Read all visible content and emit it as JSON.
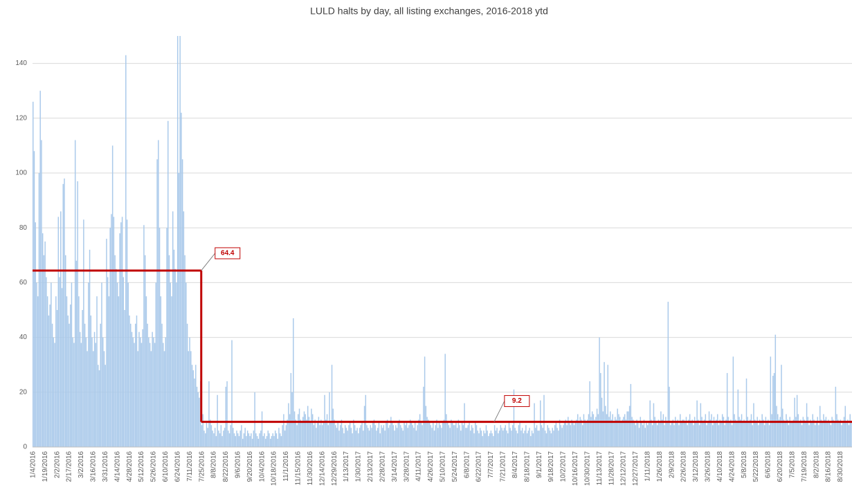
{
  "chart_data": {
    "type": "bar",
    "title": "LULD halts by day, all listing exchanges, 2016-2018 ytd",
    "color": "#a9c9ea",
    "ylim": [
      0,
      150
    ],
    "yticks": [
      0,
      20,
      40,
      60,
      80,
      100,
      120,
      140
    ],
    "grid": true,
    "categories": [
      "1/4/2016",
      null,
      null,
      null,
      null,
      null,
      null,
      null,
      null,
      null,
      "1/19/2016",
      null,
      null,
      null,
      null,
      null,
      null,
      null,
      null,
      null,
      "2/2/2016",
      null,
      null,
      null,
      null,
      null,
      null,
      null,
      null,
      null,
      "2/17/2016",
      null,
      null,
      null,
      null,
      null,
      null,
      null,
      null,
      null,
      "3/2/2016",
      null,
      null,
      null,
      null,
      null,
      null,
      null,
      null,
      null,
      "3/16/2016",
      null,
      null,
      null,
      null,
      null,
      null,
      null,
      null,
      null,
      "3/31/2016",
      null,
      null,
      null,
      null,
      null,
      null,
      null,
      null,
      null,
      "4/14/2016",
      null,
      null,
      null,
      null,
      null,
      null,
      null,
      null,
      null,
      "4/28/2016",
      null,
      null,
      null,
      null,
      null,
      null,
      null,
      null,
      null,
      "5/12/2016",
      null,
      null,
      null,
      null,
      null,
      null,
      null,
      null,
      null,
      "5/26/2016",
      null,
      null,
      null,
      null,
      null,
      null,
      null,
      null,
      null,
      "6/10/2016",
      null,
      null,
      null,
      null,
      null,
      null,
      null,
      null,
      null,
      "6/24/2016",
      null,
      null,
      null,
      null,
      null,
      null,
      null,
      null,
      null,
      "7/11/2016",
      null,
      null,
      null,
      null,
      null,
      null,
      null,
      null,
      null,
      "7/25/2016",
      null,
      null,
      null,
      null,
      null,
      null,
      null,
      null,
      null,
      "8/8/2016",
      null,
      null,
      null,
      null,
      null,
      null,
      null,
      null,
      null,
      "8/22/2016",
      null,
      null,
      null,
      null,
      null,
      null,
      null,
      null,
      null,
      "9/6/2016",
      null,
      null,
      null,
      null,
      null,
      null,
      null,
      null,
      null,
      "9/20/2016",
      null,
      null,
      null,
      null,
      null,
      null,
      null,
      null,
      null,
      "10/4/2016",
      null,
      null,
      null,
      null,
      null,
      null,
      null,
      null,
      null,
      "10/18/2016",
      null,
      null,
      null,
      null,
      null,
      null,
      null,
      null,
      null,
      "11/1/2016",
      null,
      null,
      null,
      null,
      null,
      null,
      null,
      null,
      null,
      "11/15/2016",
      null,
      null,
      null,
      null,
      null,
      null,
      null,
      null,
      null,
      "11/30/2016",
      null,
      null,
      null,
      null,
      null,
      null,
      null,
      null,
      null,
      "12/14/2016",
      null,
      null,
      null,
      null,
      null,
      null,
      null,
      null,
      null,
      "12/29/2016",
      null,
      null,
      null,
      null,
      null,
      null,
      null,
      null,
      null,
      "1/13/2017",
      null,
      null,
      null,
      null,
      null,
      null,
      null,
      null,
      null,
      "1/30/2017",
      null,
      null,
      null,
      null,
      null,
      null,
      null,
      null,
      null,
      "2/13/2017",
      null,
      null,
      null,
      null,
      null,
      null,
      null,
      null,
      null,
      "2/28/2017",
      null,
      null,
      null,
      null,
      null,
      null,
      null,
      null,
      null,
      "3/14/2017",
      null,
      null,
      null,
      null,
      null,
      null,
      null,
      null,
      null,
      "3/28/2017",
      null,
      null,
      null,
      null,
      null,
      null,
      null,
      null,
      null,
      "4/11/2017",
      null,
      null,
      null,
      null,
      null,
      null,
      null,
      null,
      null,
      "4/26/2017",
      null,
      null,
      null,
      null,
      null,
      null,
      null,
      null,
      null,
      "5/10/2017",
      null,
      null,
      null,
      null,
      null,
      null,
      null,
      null,
      null,
      "5/24/2017",
      null,
      null,
      null,
      null,
      null,
      null,
      null,
      null,
      null,
      "6/8/2017",
      null,
      null,
      null,
      null,
      null,
      null,
      null,
      null,
      null,
      "6/22/2017",
      null,
      null,
      null,
      null,
      null,
      null,
      null,
      null,
      null,
      "7/7/2017",
      null,
      null,
      null,
      null,
      null,
      null,
      null,
      null,
      null,
      "7/21/2017",
      null,
      null,
      null,
      null,
      null,
      null,
      null,
      null,
      null,
      "8/4/2017",
      null,
      null,
      null,
      null,
      null,
      null,
      null,
      null,
      null,
      "8/18/2017",
      null,
      null,
      null,
      null,
      null,
      null,
      null,
      null,
      null,
      "9/1/2017",
      null,
      null,
      null,
      null,
      null,
      null,
      null,
      null,
      null,
      "9/18/2017",
      null,
      null,
      null,
      null,
      null,
      null,
      null,
      null,
      null,
      "10/2/2017",
      null,
      null,
      null,
      null,
      null,
      null,
      null,
      null,
      null,
      "10/16/2017",
      null,
      null,
      null,
      null,
      null,
      null,
      null,
      null,
      null,
      "10/30/2017",
      null,
      null,
      null,
      null,
      null,
      null,
      null,
      null,
      null,
      "11/13/2017",
      null,
      null,
      null,
      null,
      null,
      null,
      null,
      null,
      null,
      "11/28/2017",
      null,
      null,
      null,
      null,
      null,
      null,
      null,
      null,
      null,
      "12/12/2017",
      null,
      null,
      null,
      null,
      null,
      null,
      null,
      null,
      null,
      "12/27/2017",
      null,
      null,
      null,
      null,
      null,
      null,
      null,
      null,
      null,
      "1/11/2018",
      null,
      null,
      null,
      null,
      null,
      null,
      null,
      null,
      null,
      "1/26/2018",
      null,
      null,
      null,
      null,
      null,
      null,
      null,
      null,
      null,
      "2/9/2018",
      null,
      null,
      null,
      null,
      null,
      null,
      null,
      null,
      null,
      "2/26/2018",
      null,
      null,
      null,
      null,
      null,
      null,
      null,
      null,
      null,
      "3/12/2018",
      null,
      null,
      null,
      null,
      null,
      null,
      null,
      null,
      null,
      "3/26/2018",
      null,
      null,
      null,
      null,
      null,
      null,
      null,
      null,
      null,
      "4/10/2018",
      null,
      null,
      null,
      null,
      null,
      null,
      null,
      null,
      null,
      "4/24/2018",
      null,
      null,
      null,
      null,
      null,
      null,
      null,
      null,
      null,
      "5/8/2018",
      null,
      null,
      null,
      null,
      null,
      null,
      null,
      null,
      null,
      "5/22/2018",
      null,
      null,
      null,
      null,
      null,
      null,
      null,
      null,
      null,
      "6/6/2018",
      null,
      null,
      null,
      null,
      null,
      null,
      null,
      null,
      null,
      "6/20/2018",
      null,
      null,
      null,
      null,
      null,
      null,
      null,
      null,
      null,
      "7/5/2018",
      null,
      null,
      null,
      null,
      null,
      null,
      null,
      null,
      null,
      "7/19/2018",
      null,
      null,
      null,
      null,
      null,
      null,
      null,
      null,
      null,
      "8/2/2018",
      null,
      null,
      null,
      null,
      null,
      null,
      null,
      null,
      null,
      "8/16/2018",
      null,
      null,
      null,
      null,
      null,
      null,
      null,
      null,
      null,
      "8/30/2018",
      null,
      null,
      null,
      null,
      null,
      null,
      null,
      null,
      null
    ],
    "values": [
      126,
      108,
      82,
      60,
      55,
      100,
      130,
      112,
      78,
      70,
      75,
      62,
      55,
      48,
      52,
      60,
      45,
      40,
      38,
      55,
      50,
      84,
      62,
      86,
      58,
      96,
      98,
      70,
      55,
      48,
      45,
      52,
      60,
      40,
      38,
      112,
      68,
      97,
      55,
      42,
      38,
      50,
      83,
      45,
      40,
      35,
      60,
      72,
      48,
      40,
      35,
      42,
      38,
      55,
      30,
      28,
      45,
      60,
      40,
      35,
      30,
      76,
      62,
      55,
      80,
      85,
      110,
      84,
      70,
      65,
      60,
      55,
      78,
      82,
      84,
      62,
      50,
      143,
      83,
      60,
      48,
      45,
      42,
      40,
      38,
      45,
      48,
      35,
      42,
      40,
      38,
      43,
      81,
      70,
      55,
      45,
      40,
      38,
      35,
      42,
      40,
      38,
      60,
      105,
      112,
      80,
      55,
      45,
      38,
      35,
      40,
      80,
      119,
      70,
      60,
      55,
      86,
      72,
      65,
      60,
      150,
      100,
      150,
      122,
      105,
      86,
      70,
      60,
      45,
      35,
      40,
      35,
      30,
      28,
      25,
      30,
      22,
      20,
      18,
      24,
      8,
      12,
      6,
      5,
      9,
      7,
      24,
      10,
      8,
      6,
      5,
      7,
      4,
      19,
      6,
      5,
      8,
      4,
      6,
      7,
      22,
      24,
      6,
      5,
      8,
      39,
      7,
      5,
      4,
      6,
      5,
      4,
      6,
      8,
      3,
      5,
      7,
      4,
      6,
      5,
      4,
      5,
      3,
      6,
      20,
      5,
      4,
      3,
      5,
      6,
      13,
      4,
      5,
      3,
      4,
      6,
      5,
      3,
      4,
      5,
      4,
      6,
      5,
      3,
      7,
      5,
      4,
      8,
      12,
      6,
      8,
      10,
      16,
      12,
      27,
      20,
      47,
      13,
      10,
      8,
      12,
      14,
      10,
      9,
      11,
      13,
      12,
      10,
      15,
      11,
      9,
      14,
      12,
      8,
      10,
      7,
      9,
      11,
      8,
      10,
      8,
      9,
      19,
      10,
      12,
      8,
      20,
      9,
      30,
      14,
      10,
      8,
      7,
      9,
      6,
      8,
      10,
      7,
      5,
      8,
      7,
      6,
      8,
      9,
      7,
      5,
      10,
      8,
      6,
      7,
      5,
      7,
      8,
      9,
      6,
      15,
      19,
      8,
      7,
      6,
      8,
      7,
      9,
      10,
      8,
      6,
      7,
      9,
      5,
      8,
      7,
      8,
      6,
      9,
      10,
      7,
      8,
      11,
      9,
      8,
      6,
      8,
      7,
      9,
      10,
      8,
      7,
      6,
      9,
      8,
      9,
      7,
      8,
      10,
      9,
      8,
      7,
      9,
      6,
      8,
      10,
      12,
      9,
      8,
      22,
      33,
      15,
      11,
      10,
      9,
      8,
      7,
      9,
      6,
      8,
      10,
      7,
      9,
      8,
      7,
      9,
      10,
      34,
      12,
      9,
      8,
      7,
      10,
      9,
      8,
      8,
      9,
      7,
      10,
      8,
      6,
      9,
      8,
      16,
      7,
      7,
      8,
      9,
      6,
      8,
      7,
      5,
      9,
      8,
      6,
      5,
      7,
      6,
      4,
      6,
      5,
      8,
      6,
      4,
      5,
      6,
      5,
      4,
      8,
      6,
      7,
      5,
      6,
      8,
      7,
      6,
      7,
      8,
      6,
      5,
      9,
      7,
      6,
      8,
      21,
      7,
      6,
      5,
      8,
      9,
      6,
      7,
      5,
      6,
      8,
      5,
      6,
      7,
      4,
      6,
      5,
      16,
      7,
      8,
      6,
      6,
      17,
      8,
      7,
      19,
      6,
      5,
      8,
      7,
      6,
      5,
      7,
      6,
      8,
      9,
      7,
      6,
      10,
      8,
      7,
      8,
      9,
      10,
      8,
      11,
      9,
      8,
      10,
      9,
      8,
      9,
      10,
      12,
      9,
      11,
      10,
      8,
      12,
      10,
      9,
      10,
      12,
      24,
      11,
      13,
      12,
      10,
      11,
      14,
      12,
      40,
      27,
      18,
      13,
      31,
      15,
      12,
      30,
      11,
      13,
      10,
      12,
      9,
      11,
      10,
      14,
      12,
      11,
      9,
      10,
      11,
      12,
      10,
      13,
      13,
      15,
      23,
      11,
      10,
      9,
      8,
      10,
      9,
      7,
      11,
      9,
      8,
      10,
      7,
      9,
      8,
      9,
      17,
      10,
      8,
      16,
      11,
      9,
      8,
      10,
      9,
      13,
      10,
      12,
      8,
      11,
      9,
      53,
      22,
      8,
      9,
      10,
      8,
      11,
      9,
      10,
      8,
      12,
      9,
      10,
      10,
      9,
      11,
      8,
      10,
      12,
      9,
      10,
      8,
      11,
      9,
      17,
      10,
      8,
      16,
      11,
      9,
      10,
      12,
      8,
      9,
      13,
      10,
      12,
      8,
      11,
      9,
      10,
      12,
      8,
      10,
      9,
      12,
      11,
      8,
      10,
      27,
      11,
      9,
      10,
      8,
      33,
      12,
      10,
      9,
      21,
      11,
      10,
      12,
      9,
      10,
      9,
      25,
      11,
      9,
      10,
      12,
      8,
      16,
      10,
      9,
      11,
      8,
      10,
      9,
      12,
      10,
      8,
      11,
      9,
      10,
      8,
      33,
      12,
      26,
      27,
      41,
      15,
      12,
      10,
      11,
      30,
      14,
      10,
      9,
      12,
      10,
      8,
      11,
      9,
      9,
      10,
      18,
      11,
      19,
      12,
      9,
      10,
      8,
      11,
      10,
      9,
      16,
      11,
      8,
      10,
      9,
      12,
      10,
      8,
      9,
      11,
      8,
      15,
      10,
      9,
      12,
      10,
      11,
      9,
      10,
      9,
      8,
      11,
      10,
      9,
      22,
      12,
      10,
      9,
      10,
      8,
      9,
      11,
      15,
      9,
      10,
      8,
      12,
      9
    ],
    "periods": [
      {
        "value": 64.4,
        "start": "1/4/2016",
        "color": "#c00000"
      },
      {
        "value": 9.2,
        "start": "7/25/2016",
        "color": "#c00000"
      }
    ]
  }
}
